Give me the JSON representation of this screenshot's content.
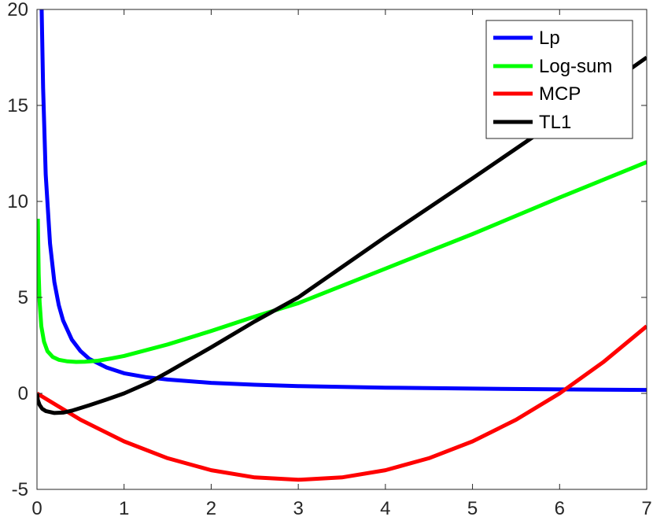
{
  "chart_data": {
    "type": "line",
    "title": "",
    "xlabel": "",
    "ylabel": "",
    "xlim": [
      0,
      7
    ],
    "ylim": [
      -5,
      20
    ],
    "xticks": [
      "0",
      "1",
      "2",
      "3",
      "4",
      "5",
      "6",
      "7"
    ],
    "yticks": [
      "-5",
      "0",
      "5",
      "10",
      "15",
      "20"
    ],
    "grid": false,
    "legend_position": "top-right",
    "series": [
      {
        "name": "Lp",
        "color": "#0000ff",
        "points": [
          [
            0.05,
            21.0
          ],
          [
            0.07,
            15.9
          ],
          [
            0.1,
            11.4
          ],
          [
            0.15,
            7.8
          ],
          [
            0.2,
            5.8
          ],
          [
            0.25,
            4.6
          ],
          [
            0.3,
            3.8
          ],
          [
            0.4,
            2.8
          ],
          [
            0.5,
            2.2
          ],
          [
            0.6,
            1.8
          ],
          [
            0.8,
            1.35
          ],
          [
            1.0,
            1.05
          ],
          [
            1.25,
            0.85
          ],
          [
            1.5,
            0.72
          ],
          [
            2.0,
            0.55
          ],
          [
            2.5,
            0.45
          ],
          [
            3.0,
            0.38
          ],
          [
            4.0,
            0.3
          ],
          [
            5.0,
            0.25
          ],
          [
            6.0,
            0.21
          ],
          [
            7.0,
            0.18
          ]
        ]
      },
      {
        "name": "Log-sum",
        "color": "#00ff00",
        "points": [
          [
            0.01,
            9.1
          ],
          [
            0.02,
            6.2
          ],
          [
            0.03,
            4.8
          ],
          [
            0.05,
            3.5
          ],
          [
            0.08,
            2.7
          ],
          [
            0.12,
            2.2
          ],
          [
            0.18,
            1.9
          ],
          [
            0.25,
            1.75
          ],
          [
            0.35,
            1.67
          ],
          [
            0.45,
            1.64
          ],
          [
            0.55,
            1.65
          ],
          [
            0.7,
            1.7
          ],
          [
            0.85,
            1.82
          ],
          [
            1.0,
            1.95
          ],
          [
            1.5,
            2.55
          ],
          [
            2.0,
            3.25
          ],
          [
            2.5,
            4.0
          ],
          [
            3.0,
            4.7
          ],
          [
            4.0,
            6.5
          ],
          [
            5.0,
            8.3
          ],
          [
            6.0,
            10.2
          ],
          [
            7.0,
            12.05
          ]
        ]
      },
      {
        "name": "MCP",
        "color": "#ff0000",
        "points": [
          [
            0.0,
            0.0
          ],
          [
            0.5,
            -1.375
          ],
          [
            1.0,
            -2.5
          ],
          [
            1.5,
            -3.375
          ],
          [
            2.0,
            -4.0
          ],
          [
            2.5,
            -4.375
          ],
          [
            3.0,
            -4.5
          ],
          [
            3.5,
            -4.375
          ],
          [
            4.0,
            -4.0
          ],
          [
            4.5,
            -3.375
          ],
          [
            5.0,
            -2.5
          ],
          [
            5.5,
            -1.375
          ],
          [
            6.0,
            0.0
          ],
          [
            6.5,
            1.625
          ],
          [
            7.0,
            3.5
          ]
        ]
      },
      {
        "name": "TL1",
        "color": "#000000",
        "points": [
          [
            0.0,
            0.0
          ],
          [
            0.01,
            -0.35
          ],
          [
            0.03,
            -0.6
          ],
          [
            0.06,
            -0.8
          ],
          [
            0.1,
            -0.92
          ],
          [
            0.2,
            -1.02
          ],
          [
            0.3,
            -1.0
          ],
          [
            0.4,
            -0.9
          ],
          [
            0.6,
            -0.62
          ],
          [
            0.8,
            -0.32
          ],
          [
            1.0,
            0.0
          ],
          [
            1.3,
            0.6
          ],
          [
            1.5,
            1.1
          ],
          [
            2.0,
            2.4
          ],
          [
            2.5,
            3.75
          ],
          [
            3.0,
            5.0
          ],
          [
            4.0,
            8.15
          ],
          [
            5.0,
            11.2
          ],
          [
            6.0,
            14.3
          ],
          [
            7.0,
            17.5
          ]
        ]
      }
    ]
  }
}
